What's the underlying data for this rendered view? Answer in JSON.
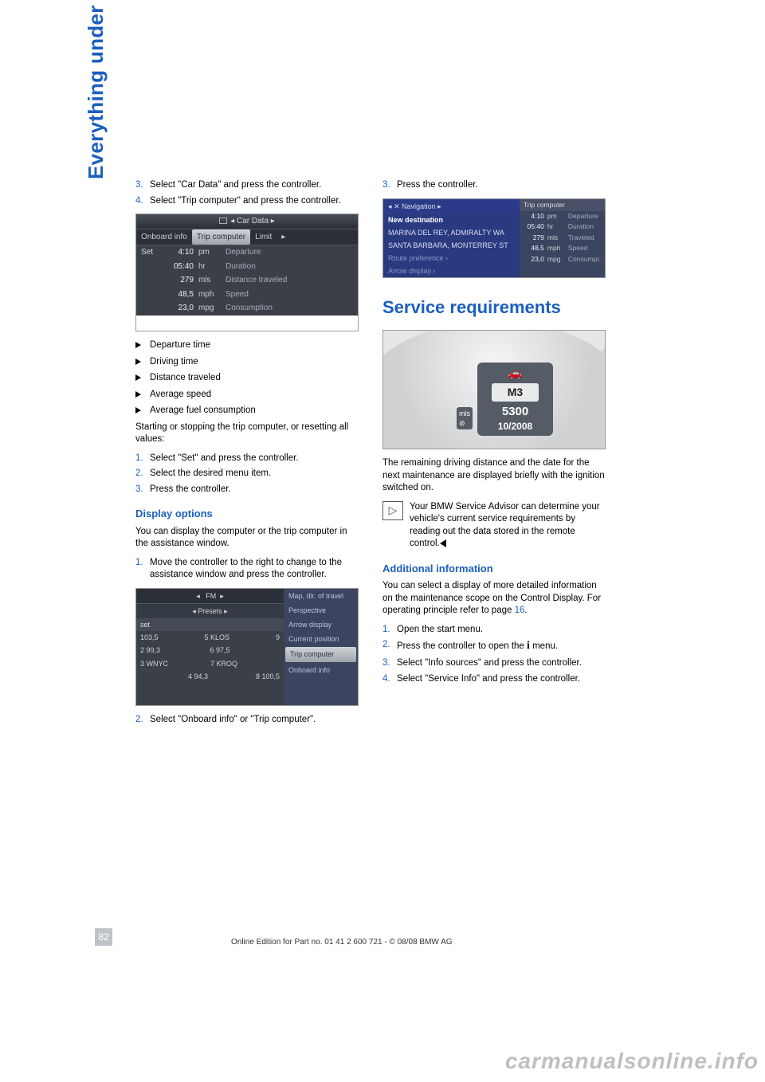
{
  "sidetab": "Everything under control",
  "col1": {
    "steps_a": [
      {
        "n": "3.",
        "t": "Select \"Car Data\" and press the controller."
      },
      {
        "n": "4.",
        "t": "Select \"Trip computer\" and press the controller."
      }
    ],
    "shot1": {
      "title": "Car Data",
      "tabs": [
        "Onboard info",
        "Trip computer",
        "Limit"
      ],
      "rows": [
        {
          "set": "Set",
          "v": "4:10",
          "u": "pm",
          "l": "Departure"
        },
        {
          "set": "",
          "v": "05:40",
          "u": "hr",
          "l": "Duration"
        },
        {
          "set": "",
          "v": "279",
          "u": "mls",
          "l": "Distance traveled"
        },
        {
          "set": "",
          "v": "48,5",
          "u": "mph",
          "l": "Speed"
        },
        {
          "set": "",
          "v": "23,0",
          "u": "mpg",
          "l": "Consumption"
        }
      ]
    },
    "bullets": [
      "Departure time",
      "Driving time",
      "Distance traveled",
      "Average speed",
      "Average fuel consumption"
    ],
    "para1": "Starting or stopping the trip computer, or resetting all values:",
    "steps_b": [
      {
        "n": "1.",
        "t": "Select \"Set\" and press the controller."
      },
      {
        "n": "2.",
        "t": "Select the desired menu item."
      },
      {
        "n": "3.",
        "t": "Press the controller."
      }
    ],
    "h1": "Display options",
    "para2": "You can display the computer or the trip computer in the assistance window.",
    "steps_c": [
      {
        "n": "1.",
        "t": "Move the controller to the right to change to the assistance window and press the controller."
      }
    ],
    "shot2": {
      "hdr": "FM",
      "presets": "Presets",
      "set": "set",
      "left": [
        [
          "103,5",
          "5 KLOS",
          "9"
        ],
        [
          "2 99,3",
          "6 97,5",
          ""
        ],
        [
          "3 WNYC",
          "7 KROQ",
          ""
        ],
        [
          "",
          "4 94,3",
          "8 100,5"
        ]
      ],
      "right": [
        "Map, dir. of travel",
        "Perspective",
        "Arrow display",
        "Current position",
        "Trip computer",
        "Onboard info"
      ]
    },
    "steps_d": [
      {
        "n": "2.",
        "t": "Select \"Onboard info\" or \"Trip computer\"."
      }
    ]
  },
  "col2": {
    "steps_a": [
      {
        "n": "3.",
        "t": "Press the controller."
      }
    ],
    "shot3": {
      "nav": "Navigation",
      "sidehdr": "Trip computer",
      "rows": [
        "New destination",
        "MARINA DEL REY, ADMIRALTY WA",
        "SANTA BARBARA, MONTERREY ST",
        "Route preference ›",
        "Arrow display ›"
      ],
      "trows": [
        [
          "4:10",
          "pm",
          "Departure"
        ],
        [
          "05:40",
          "hr",
          "Duration"
        ],
        [
          "279",
          "mls",
          "Traveled"
        ],
        [
          "48,5",
          "mph",
          "Speed"
        ],
        [
          "23,0",
          "mpg",
          "Consumpt."
        ]
      ]
    },
    "h_big": "Service requirements",
    "shot4": {
      "badge": "M3",
      "mls": "mls",
      "num": "5300",
      "date": "10/2008",
      "car": "⛟"
    },
    "para1": "The remaining driving distance and the date for the next maintenance are displayed briefly with the ignition switched on.",
    "tip": "Your BMW Service Advisor can determine your vehicle's current service requirements by reading out the data stored in the remote control.",
    "h2": "Additional information",
    "para2a": "You can select a display of more detailed information on the maintenance scope on the Control Display. For operating principle refer to page ",
    "para2link": "16",
    "para2b": ".",
    "steps_b": [
      {
        "n": "1.",
        "t": "Open the start menu."
      },
      {
        "n": "2.",
        "t": "Press the controller to open the "
      },
      {
        "n": "3.",
        "t": "Select \"Info sources\" and press the controller."
      },
      {
        "n": "4.",
        "t": "Select \"Service Info\" and press the controller."
      }
    ],
    "menu_suffix": " menu."
  },
  "footer": {
    "page": "82",
    "line": "Online Edition for Part no. 01 41 2 600 721 - © 08/08 BMW AG"
  },
  "watermark": "carmanualsonline.info",
  "adv": "▸"
}
